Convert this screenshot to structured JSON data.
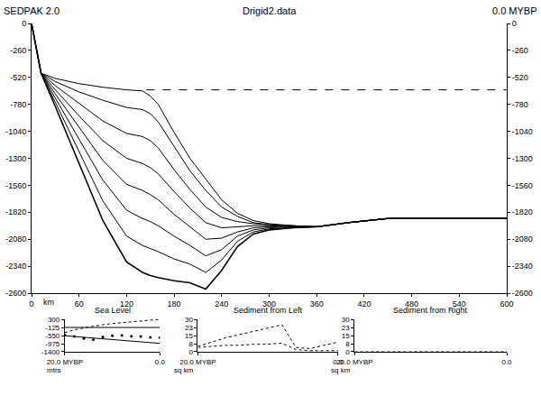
{
  "chart_data": [
    {
      "type": "line",
      "header_left": "SEDPAK 2.0",
      "title": "Drigid2.data",
      "header_right": "0.0 MYBP",
      "x_unit": "km",
      "color": "#000000",
      "x": [
        0,
        12,
        30,
        60,
        90,
        120,
        140,
        150,
        160,
        180,
        200,
        220,
        240,
        260,
        280,
        300,
        330,
        360,
        400,
        450,
        500,
        550,
        600
      ],
      "xlim": [
        0,
        600
      ],
      "xticks": [
        0,
        60,
        120,
        180,
        240,
        300,
        360,
        420,
        480,
        540,
        600
      ],
      "ylim": [
        -2600,
        0
      ],
      "yticks": [
        0,
        -260,
        -520,
        -780,
        -1040,
        -1300,
        -1560,
        -1820,
        -2080,
        -2340,
        -2600
      ],
      "y2lim": [
        -2600,
        0
      ],
      "y2ticks": [
        0,
        -260,
        -520,
        -780,
        -1040,
        -1300,
        -1560,
        -1820,
        -2080,
        -2340,
        -2600
      ],
      "series": [
        {
          "values": [
            0,
            -480,
            -800,
            -1350,
            -1900,
            -2300,
            -2400,
            -2430,
            -2450,
            -2480,
            -2500,
            -2560,
            -2380,
            -2150,
            -2030,
            -1990,
            -1970,
            -1960,
            -1920,
            -1880,
            -1880,
            -1880,
            -1880
          ]
        },
        {
          "values": [
            0,
            -480,
            -760,
            -1240,
            -1710,
            -2050,
            -2140,
            -2170,
            -2200,
            -2270,
            -2320,
            -2400,
            -2280,
            -2100,
            -2010,
            -1980,
            -1970,
            -1960,
            -1920,
            -1880,
            -1880,
            -1880,
            -1880
          ]
        },
        {
          "values": [
            0,
            -480,
            -720,
            -1120,
            -1510,
            -1800,
            -1880,
            -1910,
            -1950,
            -2050,
            -2140,
            -2240,
            -2180,
            -2050,
            -1990,
            -1970,
            -1960,
            -1960,
            -1920,
            -1880,
            -1880,
            -1880,
            -1880
          ]
        },
        {
          "values": [
            0,
            -480,
            -680,
            -1000,
            -1320,
            -1550,
            -1610,
            -1650,
            -1700,
            -1840,
            -1960,
            -2080,
            -2070,
            -2010,
            -1970,
            -1960,
            -1960,
            -1960,
            -1920,
            -1880,
            -1880,
            -1880,
            -1880
          ]
        },
        {
          "values": [
            0,
            -480,
            -640,
            -890,
            -1130,
            -1300,
            -1350,
            -1390,
            -1450,
            -1620,
            -1780,
            -1920,
            -1970,
            -1960,
            -1950,
            -1950,
            -1960,
            -1960,
            -1920,
            -1880,
            -1880,
            -1880,
            -1880
          ]
        },
        {
          "values": [
            0,
            -480,
            -600,
            -770,
            -940,
            -1060,
            -1090,
            -1130,
            -1200,
            -1410,
            -1600,
            -1770,
            -1870,
            -1910,
            -1930,
            -1940,
            -1950,
            -1960,
            -1920,
            -1880,
            -1880,
            -1880,
            -1880
          ]
        },
        {
          "values": [
            0,
            -480,
            -560,
            -660,
            -740,
            -810,
            -830,
            -870,
            -950,
            -1190,
            -1420,
            -1610,
            -1770,
            -1860,
            -1920,
            -1940,
            -1950,
            -1960,
            -1920,
            -1880,
            -1880,
            -1880,
            -1880
          ]
        },
        {
          "values": [
            0,
            -480,
            -530,
            -580,
            -615,
            -640,
            -650,
            -700,
            -780,
            -1050,
            -1300,
            -1500,
            -1700,
            -1830,
            -1900,
            -1930,
            -1950,
            -1960,
            -1920,
            -1880,
            -1880,
            -1880,
            -1880
          ]
        },
        {
          "x": [
            145,
            600
          ],
          "values": [
            -640,
            -640
          ],
          "line_style": "dashed",
          "axis": "y2"
        }
      ]
    },
    {
      "type": "line",
      "title": "Sea Level",
      "y_unit": "mtrs",
      "color": "#000000",
      "x": [
        20,
        18,
        16,
        14,
        12,
        10,
        8,
        6,
        4,
        2,
        0
      ],
      "xlim": [
        20,
        0
      ],
      "xticks": [
        {
          "value": 20,
          "label": "20.0 MYBP"
        },
        {
          "value": 0,
          "label": "0.0"
        }
      ],
      "ylim": [
        -1400,
        300
      ],
      "yticks": [
        300,
        -125,
        -550,
        -975,
        -1400
      ],
      "series": [
        {
          "values": [
            -400,
            -250,
            -150,
            -50,
            20,
            80,
            130,
            180,
            220,
            260,
            300
          ],
          "line_style": "dotted"
        },
        {
          "values": [
            -125,
            -125,
            -125,
            -125,
            -125,
            -125,
            -125,
            -125,
            -125,
            -125,
            -125
          ],
          "line_style": "solid"
        },
        {
          "values": [
            -560,
            -600,
            -640,
            -680,
            -720,
            -760,
            -800,
            -840,
            -880,
            -920,
            -960
          ],
          "line_style": "solid"
        },
        {
          "values": [
            -530,
            -600,
            -700,
            -760,
            -620,
            -560,
            -540,
            -580,
            -600,
            -640,
            -650
          ],
          "marker": "dot"
        }
      ]
    },
    {
      "type": "line",
      "title": "Sediment from Left",
      "y_unit": "sq km",
      "color": "#000000",
      "x": [
        20,
        18,
        16,
        14,
        12,
        10,
        8,
        6,
        4,
        2,
        0
      ],
      "xlim": [
        20,
        0
      ],
      "xticks": [
        {
          "value": 20,
          "label": "20.0 MYBP"
        },
        {
          "value": 0,
          "label": "0.0"
        }
      ],
      "ylim": [
        0,
        30
      ],
      "yticks": [
        0,
        {
          "value": 7.5,
          "label": "8"
        },
        15,
        {
          "value": 22.5,
          "label": "23"
        },
        30
      ],
      "series": [
        {
          "values": [
            5,
            9,
            13,
            16,
            19,
            22,
            25,
            4,
            3,
            6,
            9
          ],
          "line_style": "dotted"
        },
        {
          "values": [
            4,
            5,
            6,
            6,
            7,
            7,
            8,
            2,
            1,
            1,
            1
          ],
          "line_style": "dotted"
        }
      ]
    },
    {
      "type": "line",
      "title": "Sediment from Right",
      "y_unit": "sq km",
      "color": "#000000",
      "x": [
        20,
        18,
        16,
        14,
        12,
        10,
        8,
        6,
        4,
        2,
        0
      ],
      "xlim": [
        20,
        0
      ],
      "xticks": [
        {
          "value": 20,
          "label": "20.0 MYBP"
        },
        {
          "value": 0,
          "label": "0.0"
        }
      ],
      "ylim": [
        0,
        30
      ],
      "yticks": [
        0,
        {
          "value": 7.5,
          "label": "8"
        },
        15,
        {
          "value": 22.5,
          "label": "23"
        },
        30
      ],
      "series": [
        {
          "values": [
            0,
            0,
            0,
            0,
            0,
            0,
            0,
            0,
            0,
            0,
            0
          ],
          "line_style": "dotted"
        }
      ]
    }
  ]
}
